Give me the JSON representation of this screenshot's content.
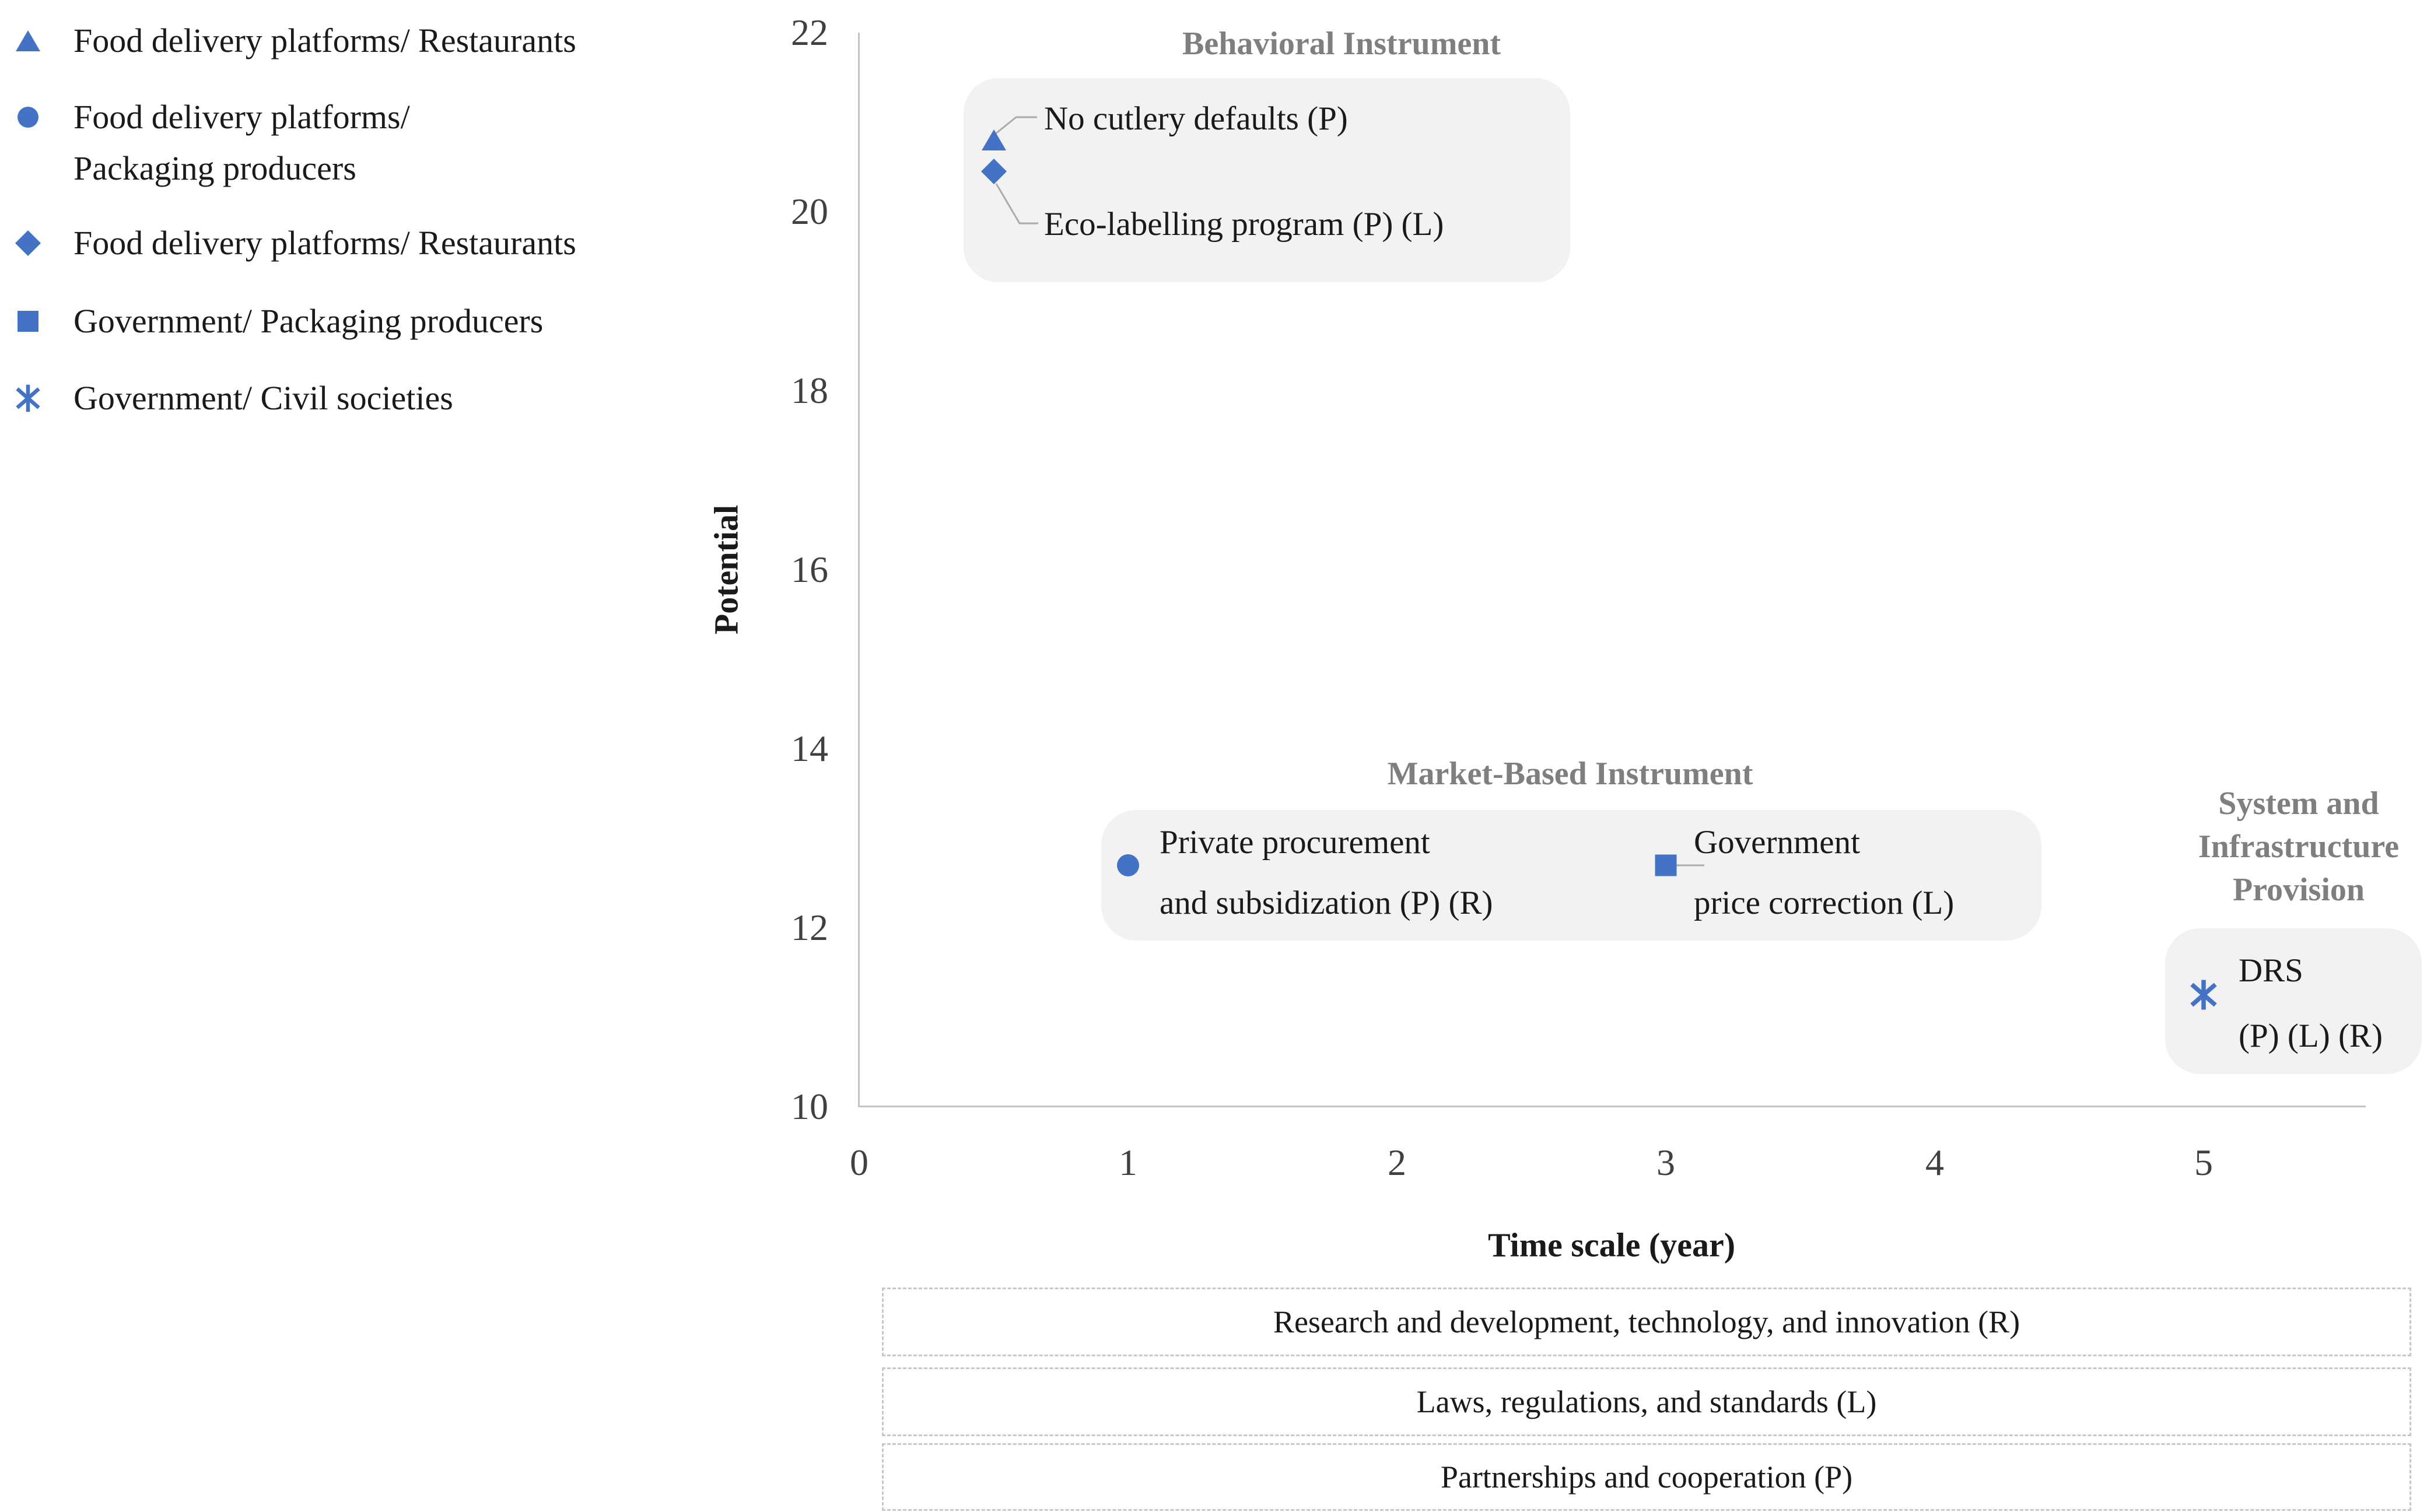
{
  "legend": {
    "items": [
      {
        "marker": "triangle",
        "lines": [
          "Food delivery platforms/ Restaurants"
        ]
      },
      {
        "marker": "circle",
        "lines": [
          "Food delivery platforms/",
          "Packaging producers"
        ]
      },
      {
        "marker": "diamond",
        "lines": [
          "Food delivery platforms/ Restaurants"
        ]
      },
      {
        "marker": "square",
        "lines": [
          "Government/ Packaging producers"
        ]
      },
      {
        "marker": "asterisk",
        "lines": [
          "Government/ Civil societies"
        ]
      }
    ]
  },
  "chart_data": {
    "type": "scatter",
    "title": "",
    "xlabel": "Time scale (year)",
    "ylabel": "Potential",
    "xlim": [
      0,
      5.6
    ],
    "ylim": [
      10,
      22
    ],
    "x_ticks": [
      0,
      1,
      2,
      3,
      4,
      5
    ],
    "y_ticks": [
      10,
      12,
      14,
      16,
      18,
      20,
      22
    ],
    "grid": false,
    "legend_position": "top-left",
    "series": [
      {
        "name": "Food delivery platforms/ Restaurants",
        "marker": "triangle",
        "points": [
          {
            "x": 0.5,
            "y": 20.8,
            "label": "No cutlery defaults (P)",
            "group": "Behavioral Instrument"
          }
        ]
      },
      {
        "name": "Food delivery platforms/ Packaging producers",
        "marker": "circle",
        "points": [
          {
            "x": 1,
            "y": 12.7,
            "label": "Private procurement and subsidization (P) (R)",
            "group": "Market-Based Instrument"
          }
        ]
      },
      {
        "name": "Food delivery platforms/ Restaurants",
        "marker": "diamond",
        "points": [
          {
            "x": 0.5,
            "y": 20.45,
            "label": "Eco-labelling program (P) (L)",
            "group": "Behavioral Instrument"
          }
        ]
      },
      {
        "name": "Government/ Packaging producers",
        "marker": "square",
        "points": [
          {
            "x": 3,
            "y": 12.7,
            "label": "Government price correction (L)",
            "group": "Market-Based Instrument"
          }
        ]
      },
      {
        "name": "Government/ Civil societies",
        "marker": "asterisk",
        "points": [
          {
            "x": 5,
            "y": 11.25,
            "label": "DRS (P) (L) (R)",
            "group": "System and Infrastructure Provision"
          }
        ]
      }
    ]
  },
  "annotations": {
    "behavioral": {
      "title": "Behavioral Instrument",
      "entry1": "No cutlery defaults (P)",
      "entry2": "Eco-labelling program (P) (L)"
    },
    "market": {
      "title": "Market-Based Instrument",
      "entry1_lines": [
        "Private procurement",
        "and subsidization (P) (R)"
      ],
      "entry2_lines": [
        "Government",
        "price correction (L)"
      ]
    },
    "system": {
      "title": "System and Infrastructure Provision",
      "entry_lines": [
        "DRS",
        "(P) (L) (R)"
      ]
    }
  },
  "footer": {
    "boxes": [
      "Research and development, technology, and innovation (R)",
      "Laws, regulations, and standards (L)",
      "Partnerships and cooperation (P)"
    ]
  },
  "colors": {
    "marker_blue": "#4472C4",
    "section_title_gray": "#7F7F7F",
    "annotation_box_bg": "#F2F2F2",
    "axis_line": "#C4C4C4",
    "leader_line": "#ABABAB",
    "tick_label": "#404040",
    "dashed_border": "#C8C8C8"
  }
}
